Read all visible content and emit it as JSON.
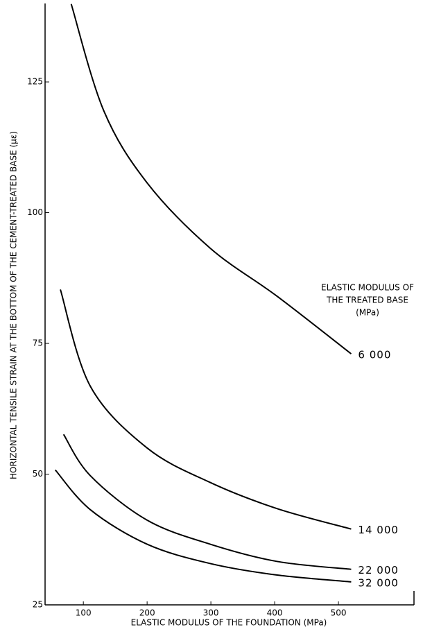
{
  "chart_data": {
    "type": "line",
    "xlabel": "ELASTIC MODULUS OF THE FOUNDATION (MPa)",
    "ylabel": "HORIZONTAL TENSILE STRAIN AT THE BOTTOM OF THE CEMENT-TREATED BASE (με)",
    "legend_title": [
      "ELASTIC MODULUS OF",
      "THE TREATED BASE",
      "(MPa)"
    ],
    "xlim": [
      40,
      600
    ],
    "ylim": [
      25,
      140
    ],
    "xticks": [
      100,
      200,
      300,
      400,
      500
    ],
    "yticks": [
      25,
      50,
      75,
      100,
      125
    ],
    "color": "#000000",
    "series": [
      {
        "name": "6 000",
        "x": [
          81,
          132,
          200,
          299,
          404,
          520
        ],
        "values": [
          139.9,
          119.5,
          105.7,
          93.2,
          84,
          73
        ]
      },
      {
        "name": "14 000",
        "x": [
          64,
          111,
          200,
          299,
          404,
          520
        ],
        "values": [
          85.3,
          66.8,
          55,
          48.4,
          43.4,
          39.5
        ]
      },
      {
        "name": "22 000",
        "x": [
          69,
          111,
          200,
          299,
          404,
          520
        ],
        "values": [
          57.6,
          49.7,
          41.2,
          36.6,
          33.3,
          31.8
        ]
      },
      {
        "name": "32 000",
        "x": [
          56,
          111,
          200,
          299,
          404,
          520
        ],
        "values": [
          50.8,
          43.2,
          36.6,
          32.9,
          30.7,
          29.4
        ]
      }
    ]
  }
}
